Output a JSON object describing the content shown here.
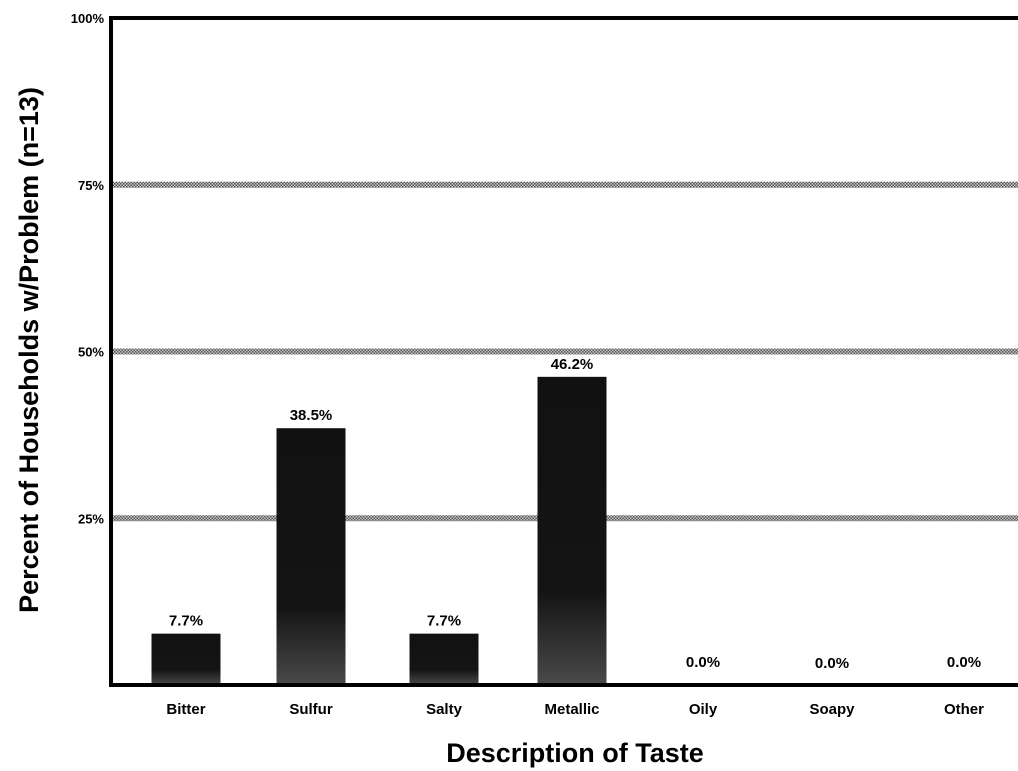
{
  "chart_data": {
    "type": "bar",
    "categories": [
      "Bitter",
      "Sulfur",
      "Salty",
      "Metallic",
      "Oily",
      "Soapy",
      "Other"
    ],
    "values": [
      7.7,
      38.5,
      7.7,
      46.2,
      0.0,
      0.0,
      0.0
    ],
    "value_labels": [
      "7.7%",
      "38.5%",
      "7.7%",
      "46.2%",
      "0.0%",
      "0.0%",
      "0.0%"
    ],
    "xlabel": "Description of Taste",
    "ylabel": "Percent of Households w/Problem (n=13)",
    "ylim": [
      0,
      100
    ],
    "yticks": [
      0,
      25,
      50,
      75,
      100
    ],
    "ytick_labels": [
      "",
      "25%",
      "50%",
      "75%",
      "100%"
    ],
    "grid": true,
    "legend": "none",
    "colors": {
      "bar": "#111111",
      "bar_base_shade": "#444444",
      "gridline": "#7a7a7a",
      "axis": "#000000"
    }
  }
}
